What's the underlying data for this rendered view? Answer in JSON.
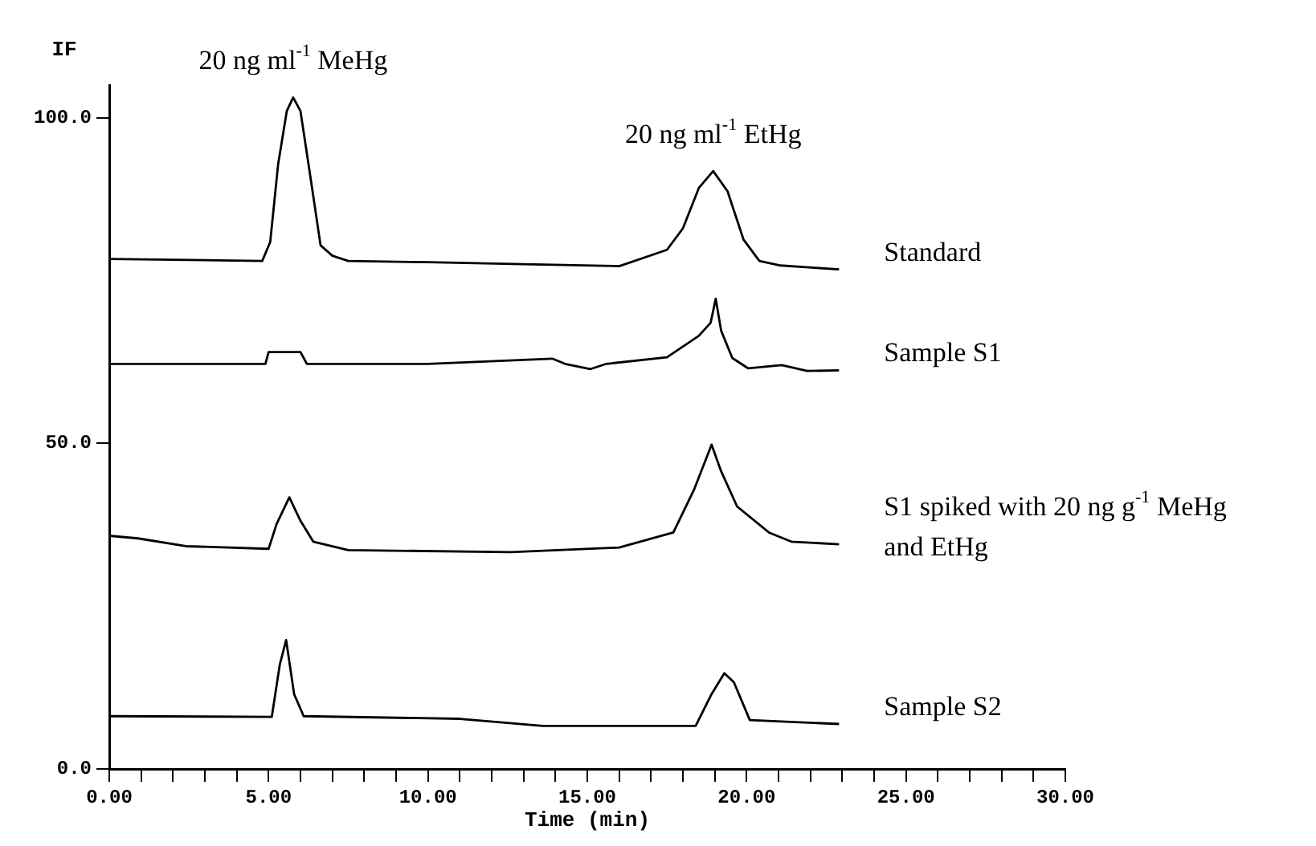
{
  "chart_data": {
    "type": "line",
    "xlabel": "Time (min)",
    "ylabel": "IF",
    "xlim": [
      0,
      30
    ],
    "ylim": [
      0,
      105
    ],
    "xticks": [
      {
        "value": 0,
        "label": "0.00"
      },
      {
        "value": 1,
        "label": null
      },
      {
        "value": 2,
        "label": null
      },
      {
        "value": 3,
        "label": null
      },
      {
        "value": 4,
        "label": null
      },
      {
        "value": 5,
        "label": "5.00"
      },
      {
        "value": 6,
        "label": null
      },
      {
        "value": 7,
        "label": null
      },
      {
        "value": 8,
        "label": null
      },
      {
        "value": 9,
        "label": null
      },
      {
        "value": 10,
        "label": "10.00"
      },
      {
        "value": 11,
        "label": null
      },
      {
        "value": 12,
        "label": null
      },
      {
        "value": 13,
        "label": null
      },
      {
        "value": 14,
        "label": null
      },
      {
        "value": 15,
        "label": "15.00"
      },
      {
        "value": 16,
        "label": null
      },
      {
        "value": 17,
        "label": null
      },
      {
        "value": 18,
        "label": null
      },
      {
        "value": 19,
        "label": null
      },
      {
        "value": 20,
        "label": "20.00"
      },
      {
        "value": 21,
        "label": null
      },
      {
        "value": 22,
        "label": null
      },
      {
        "value": 23,
        "label": null
      },
      {
        "value": 24,
        "label": null
      },
      {
        "value": 25,
        "label": "25.00"
      },
      {
        "value": 26,
        "label": null
      },
      {
        "value": 27,
        "label": null
      },
      {
        "value": 28,
        "label": null
      },
      {
        "value": 29,
        "label": null
      },
      {
        "value": 30,
        "label": "30.00"
      }
    ],
    "yticks": [
      {
        "value": 0,
        "label": "0.0"
      },
      {
        "value": 50,
        "label": "50.0"
      },
      {
        "value": 100,
        "label": "100.0"
      }
    ],
    "grid": false,
    "legend": false,
    "annotations": [
      {
        "text": "20 ng ml$^{-1}$ MeHg",
        "x": 5.77,
        "y": 103.1
      },
      {
        "text": "20 ng ml$^{-1}$ EtHg",
        "x": 18.95,
        "y": 91.8
      }
    ],
    "series": [
      {
        "name": "Standard",
        "color": "#000000",
        "x": [
          0,
          4.8,
          5.05,
          5.3,
          5.57,
          5.77,
          6.0,
          6.33,
          6.63,
          7.0,
          7.5,
          10,
          13,
          16,
          17.5,
          18.0,
          18.5,
          18.95,
          19.4,
          19.9,
          20.4,
          21.07,
          22.9
        ],
        "values": [
          78.3,
          78,
          80.9,
          92.9,
          101,
          103.1,
          101,
          90.3,
          80.4,
          78.8,
          78,
          77.8,
          77.5,
          77.2,
          79.7,
          83,
          89.2,
          91.8,
          88.7,
          81.3,
          78,
          77.3,
          76.7
        ]
      },
      {
        "name": "Sample S1",
        "color": "#000000",
        "x": [
          0,
          4.9,
          5.0,
          6.0,
          6.2,
          10,
          13.9,
          14.3,
          15.1,
          15.6,
          17.5,
          18.5,
          18.87,
          19.03,
          19.2,
          19.55,
          20.05,
          21.1,
          21.9,
          22.9
        ],
        "values": [
          62.2,
          62.2,
          64,
          64,
          62.2,
          62.2,
          63,
          62.2,
          61.4,
          62.2,
          63.2,
          66.5,
          68.5,
          72.2,
          67.3,
          63.1,
          61.5,
          62,
          61.1,
          61.2
        ]
      },
      {
        "name": "S1 spiked with 20 ng g$^{-1}$ MeHg and EtHg",
        "color": "#000000",
        "x": [
          0,
          0.9,
          2.4,
          5.0,
          5.25,
          5.65,
          6.0,
          6.4,
          7.5,
          12.6,
          16,
          17.7,
          18.36,
          18.9,
          19.2,
          19.7,
          20.7,
          21.4,
          22.9
        ],
        "values": [
          35.8,
          35.4,
          34.2,
          33.8,
          37.6,
          41.7,
          38.1,
          34.9,
          33.6,
          33.3,
          34.0,
          36.3,
          43.0,
          49.8,
          45.7,
          40.3,
          36.3,
          34.9,
          34.5
        ]
      },
      {
        "name": "Sample S2",
        "color": "#000000",
        "x": [
          0,
          5.1,
          5.35,
          5.55,
          5.8,
          6.1,
          11,
          13.6,
          18.4,
          18.9,
          19.3,
          19.6,
          20.1,
          22.9
        ],
        "values": [
          8.1,
          8.0,
          16.0,
          19.8,
          11.5,
          8.1,
          7.7,
          6.6,
          6.6,
          11.5,
          14.7,
          13.3,
          7.5,
          6.9
        ]
      }
    ]
  }
}
